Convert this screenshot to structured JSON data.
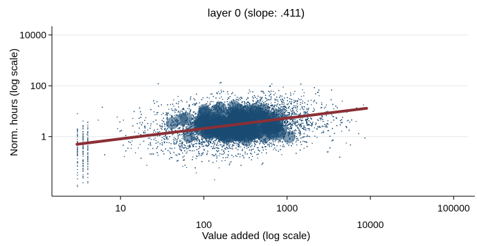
{
  "chart_data": {
    "type": "scatter",
    "title": "layer 0 (slope: .411)",
    "xlabel": "Value added (log scale)",
    "ylabel": "Norm. hours (log scale)",
    "x_scale": "log",
    "y_scale": "log",
    "xlim": [
      1.5,
      180000
    ],
    "ylim": [
      0.0045,
      22000
    ],
    "x_ticks": [
      {
        "value": 10,
        "label": "10"
      },
      {
        "value": 100,
        "label": "100"
      },
      {
        "value": 1000,
        "label": "1000"
      },
      {
        "value": 10000,
        "label": "10000"
      },
      {
        "value": 100000,
        "label": "100000"
      }
    ],
    "y_ticks": [
      {
        "value": 1,
        "label": "1"
      },
      {
        "value": 100,
        "label": "100"
      },
      {
        "value": 10000,
        "label": "10000"
      }
    ],
    "grid": "horizontal",
    "legend": "none",
    "scatter": {
      "color": "#1a4a72",
      "x_range": [
        3,
        9000
      ],
      "y_range": [
        0.01,
        5000
      ],
      "center": {
        "x": 250,
        "y": 3
      },
      "spread_log10": {
        "x": 0.48,
        "y": 0.52
      }
    },
    "fit_line": {
      "color": "#8b2f35",
      "slope": 0.411,
      "points": [
        {
          "x": 3,
          "y": 0.5
        },
        {
          "x": 9000,
          "y": 13
        }
      ]
    }
  }
}
